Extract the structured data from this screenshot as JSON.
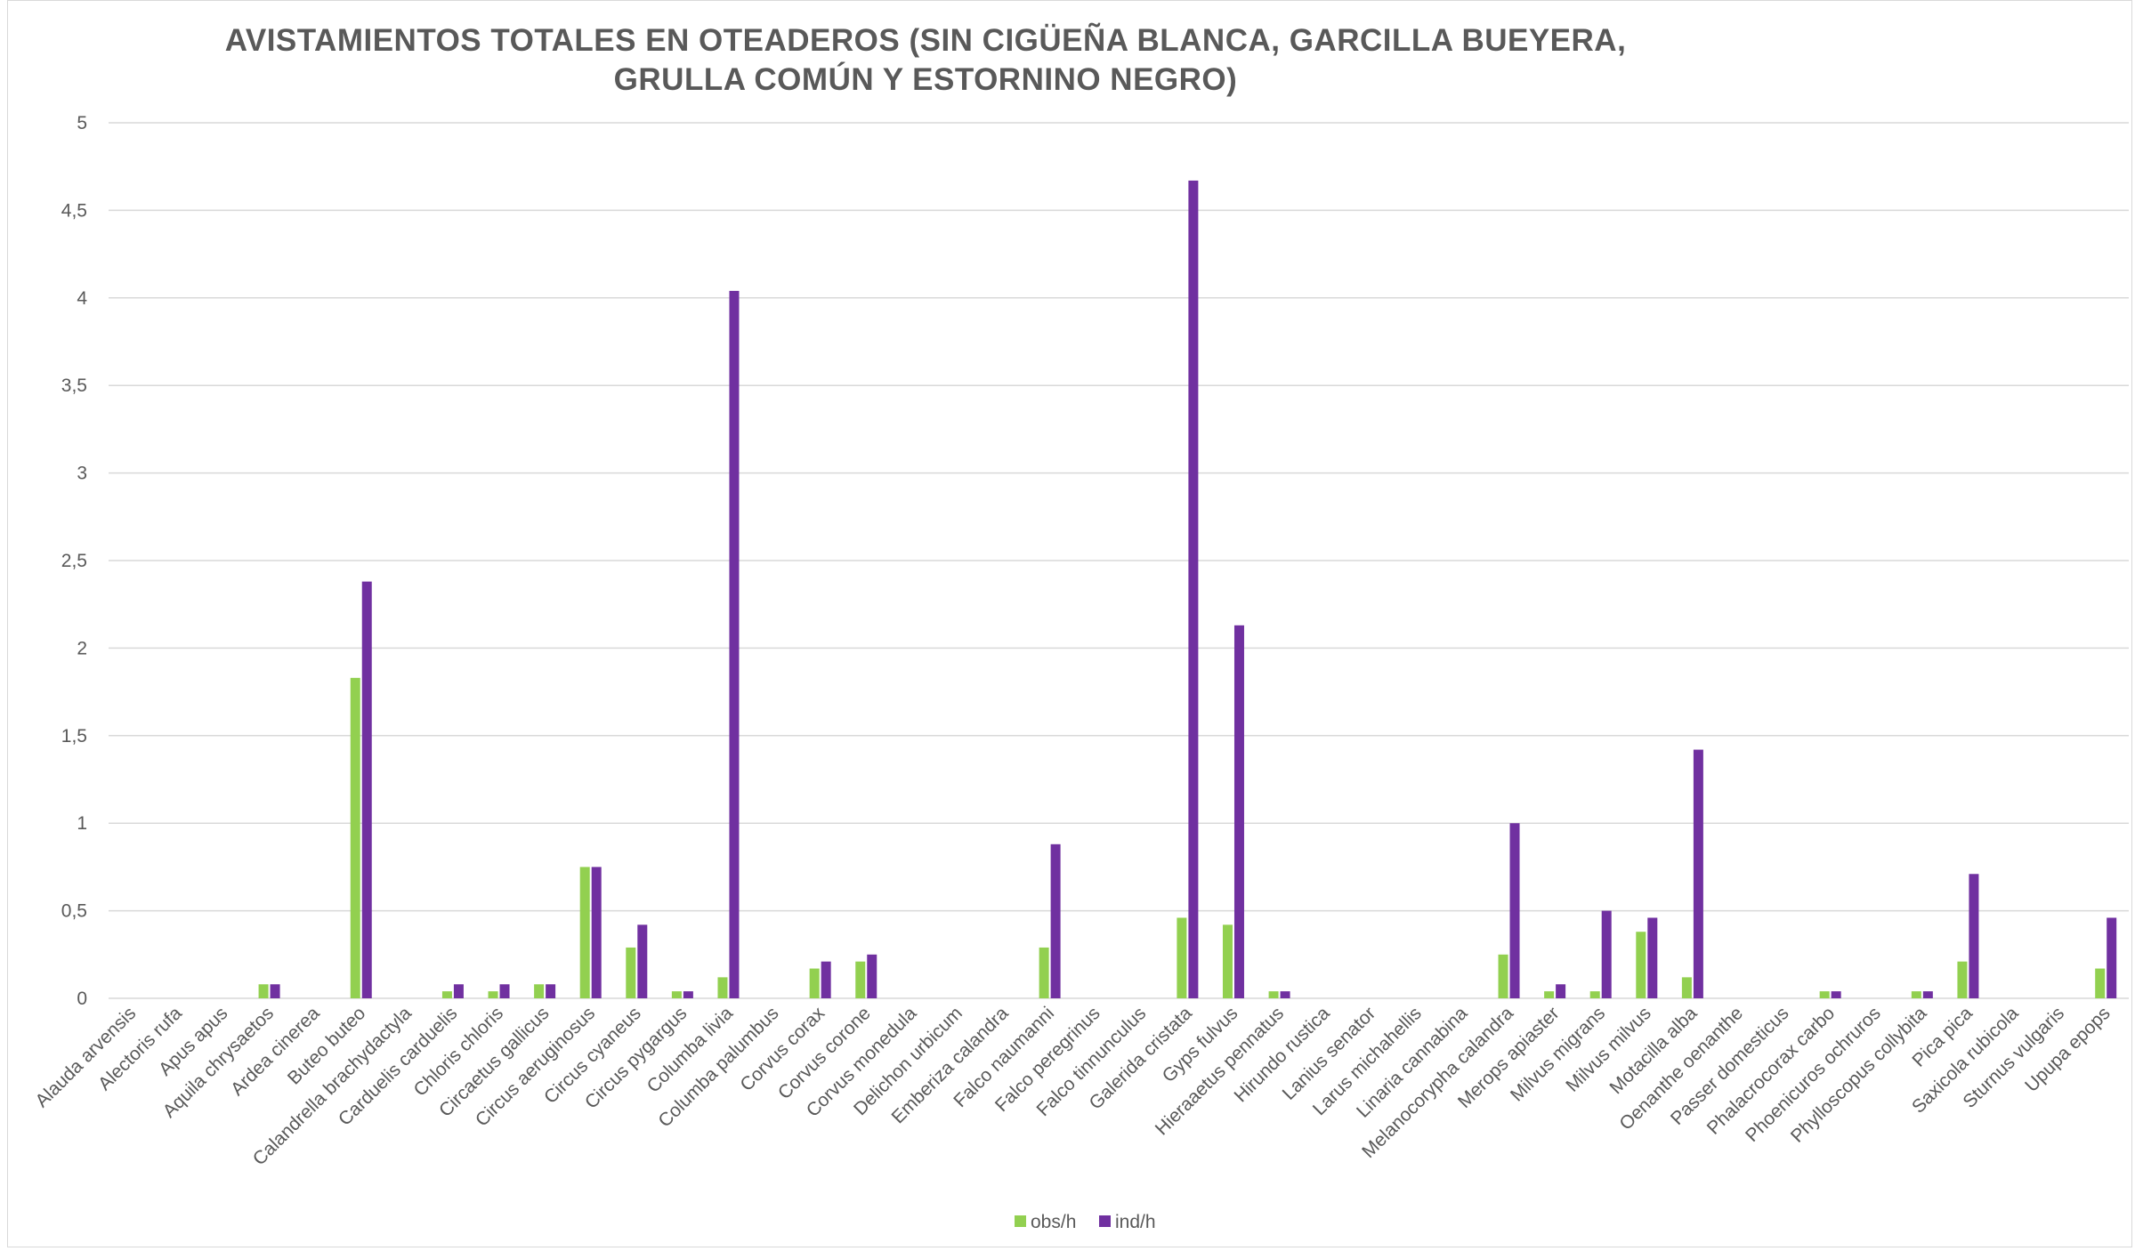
{
  "chart_data": {
    "type": "bar",
    "title": "AVISTAMIENTOS TOTALES EN OTEADEROS (SIN CIGÜEÑA BLANCA, GARCILLA BUEYERA, GRULLA COMÚN Y ESTORNINO NEGRO)",
    "xlabel": "",
    "ylabel": "",
    "ylim": [
      0,
      5
    ],
    "yticks": [
      "0",
      "0,5",
      "1",
      "1,5",
      "2",
      "2,5",
      "3",
      "3,5",
      "4",
      "4,5",
      "5"
    ],
    "grid": true,
    "legend_position": "bottom",
    "categories": [
      "Alauda arvensis",
      "Alectoris rufa",
      "Apus apus",
      "Aquila chrysaetos",
      "Ardea cinerea",
      "Buteo buteo",
      "Calandrella brachydactyla",
      "Carduelis carduelis",
      "Chloris chloris",
      "Circaetus gallicus",
      "Circus aeruginosus",
      "Circus cyaneus",
      "Circus pygargus",
      "Columba livia",
      "Columba palumbus",
      "Corvus corax",
      "Corvus corone",
      "Corvus monedula",
      "Delichon urbicum",
      "Emberiza calandra",
      "Falco naumanni",
      "Falco peregrinus",
      "Falco tinnunculus",
      "Galerida cristata",
      "Gyps fulvus",
      "Hieraaetus pennatus",
      "Hirundo rustica",
      "Lanius senator",
      "Larus michahellis",
      "Linaria cannabina",
      "Melanocorypha calandra",
      "Merops apiaster",
      "Milvus migrans",
      "Milvus milvus",
      "Motacilla alba",
      "Oenanthe oenanthe",
      "Passer domesticus",
      "Phalacrocorax carbo",
      "Phoenicuros ochruros",
      "Phylloscopus collybita",
      "Pica pica",
      "Saxicola rubicola",
      "Sturnus vulgaris",
      "Upupa epops"
    ],
    "series": [
      {
        "name": "obs/h",
        "color": "#92d050",
        "values": [
          0,
          0,
          0,
          0.08,
          0,
          1.83,
          0,
          0.04,
          0.04,
          0.08,
          0.75,
          0.29,
          0.04,
          0.12,
          0,
          0.17,
          0.21,
          0,
          0,
          0,
          0.29,
          0,
          0,
          0.46,
          0.42,
          0.04,
          0,
          0,
          0,
          0,
          0.25,
          0.04,
          0.04,
          0.38,
          0.12,
          0,
          0,
          0.04,
          0,
          0.04,
          0.21,
          0,
          0,
          0.17
        ]
      },
      {
        "name": "ind/h",
        "color": "#7030a0",
        "values": [
          0,
          0,
          0,
          0.08,
          0,
          2.38,
          0,
          0.08,
          0.08,
          0.08,
          0.75,
          0.42,
          0.04,
          4.04,
          0,
          0.21,
          0.25,
          0,
          0,
          0,
          0.88,
          0,
          0,
          4.67,
          2.13,
          0.04,
          0,
          0,
          0,
          0,
          1.0,
          0.08,
          0.5,
          0.46,
          1.42,
          0,
          0,
          0.04,
          0,
          0.04,
          0.71,
          0,
          0,
          0.46
        ]
      }
    ]
  }
}
